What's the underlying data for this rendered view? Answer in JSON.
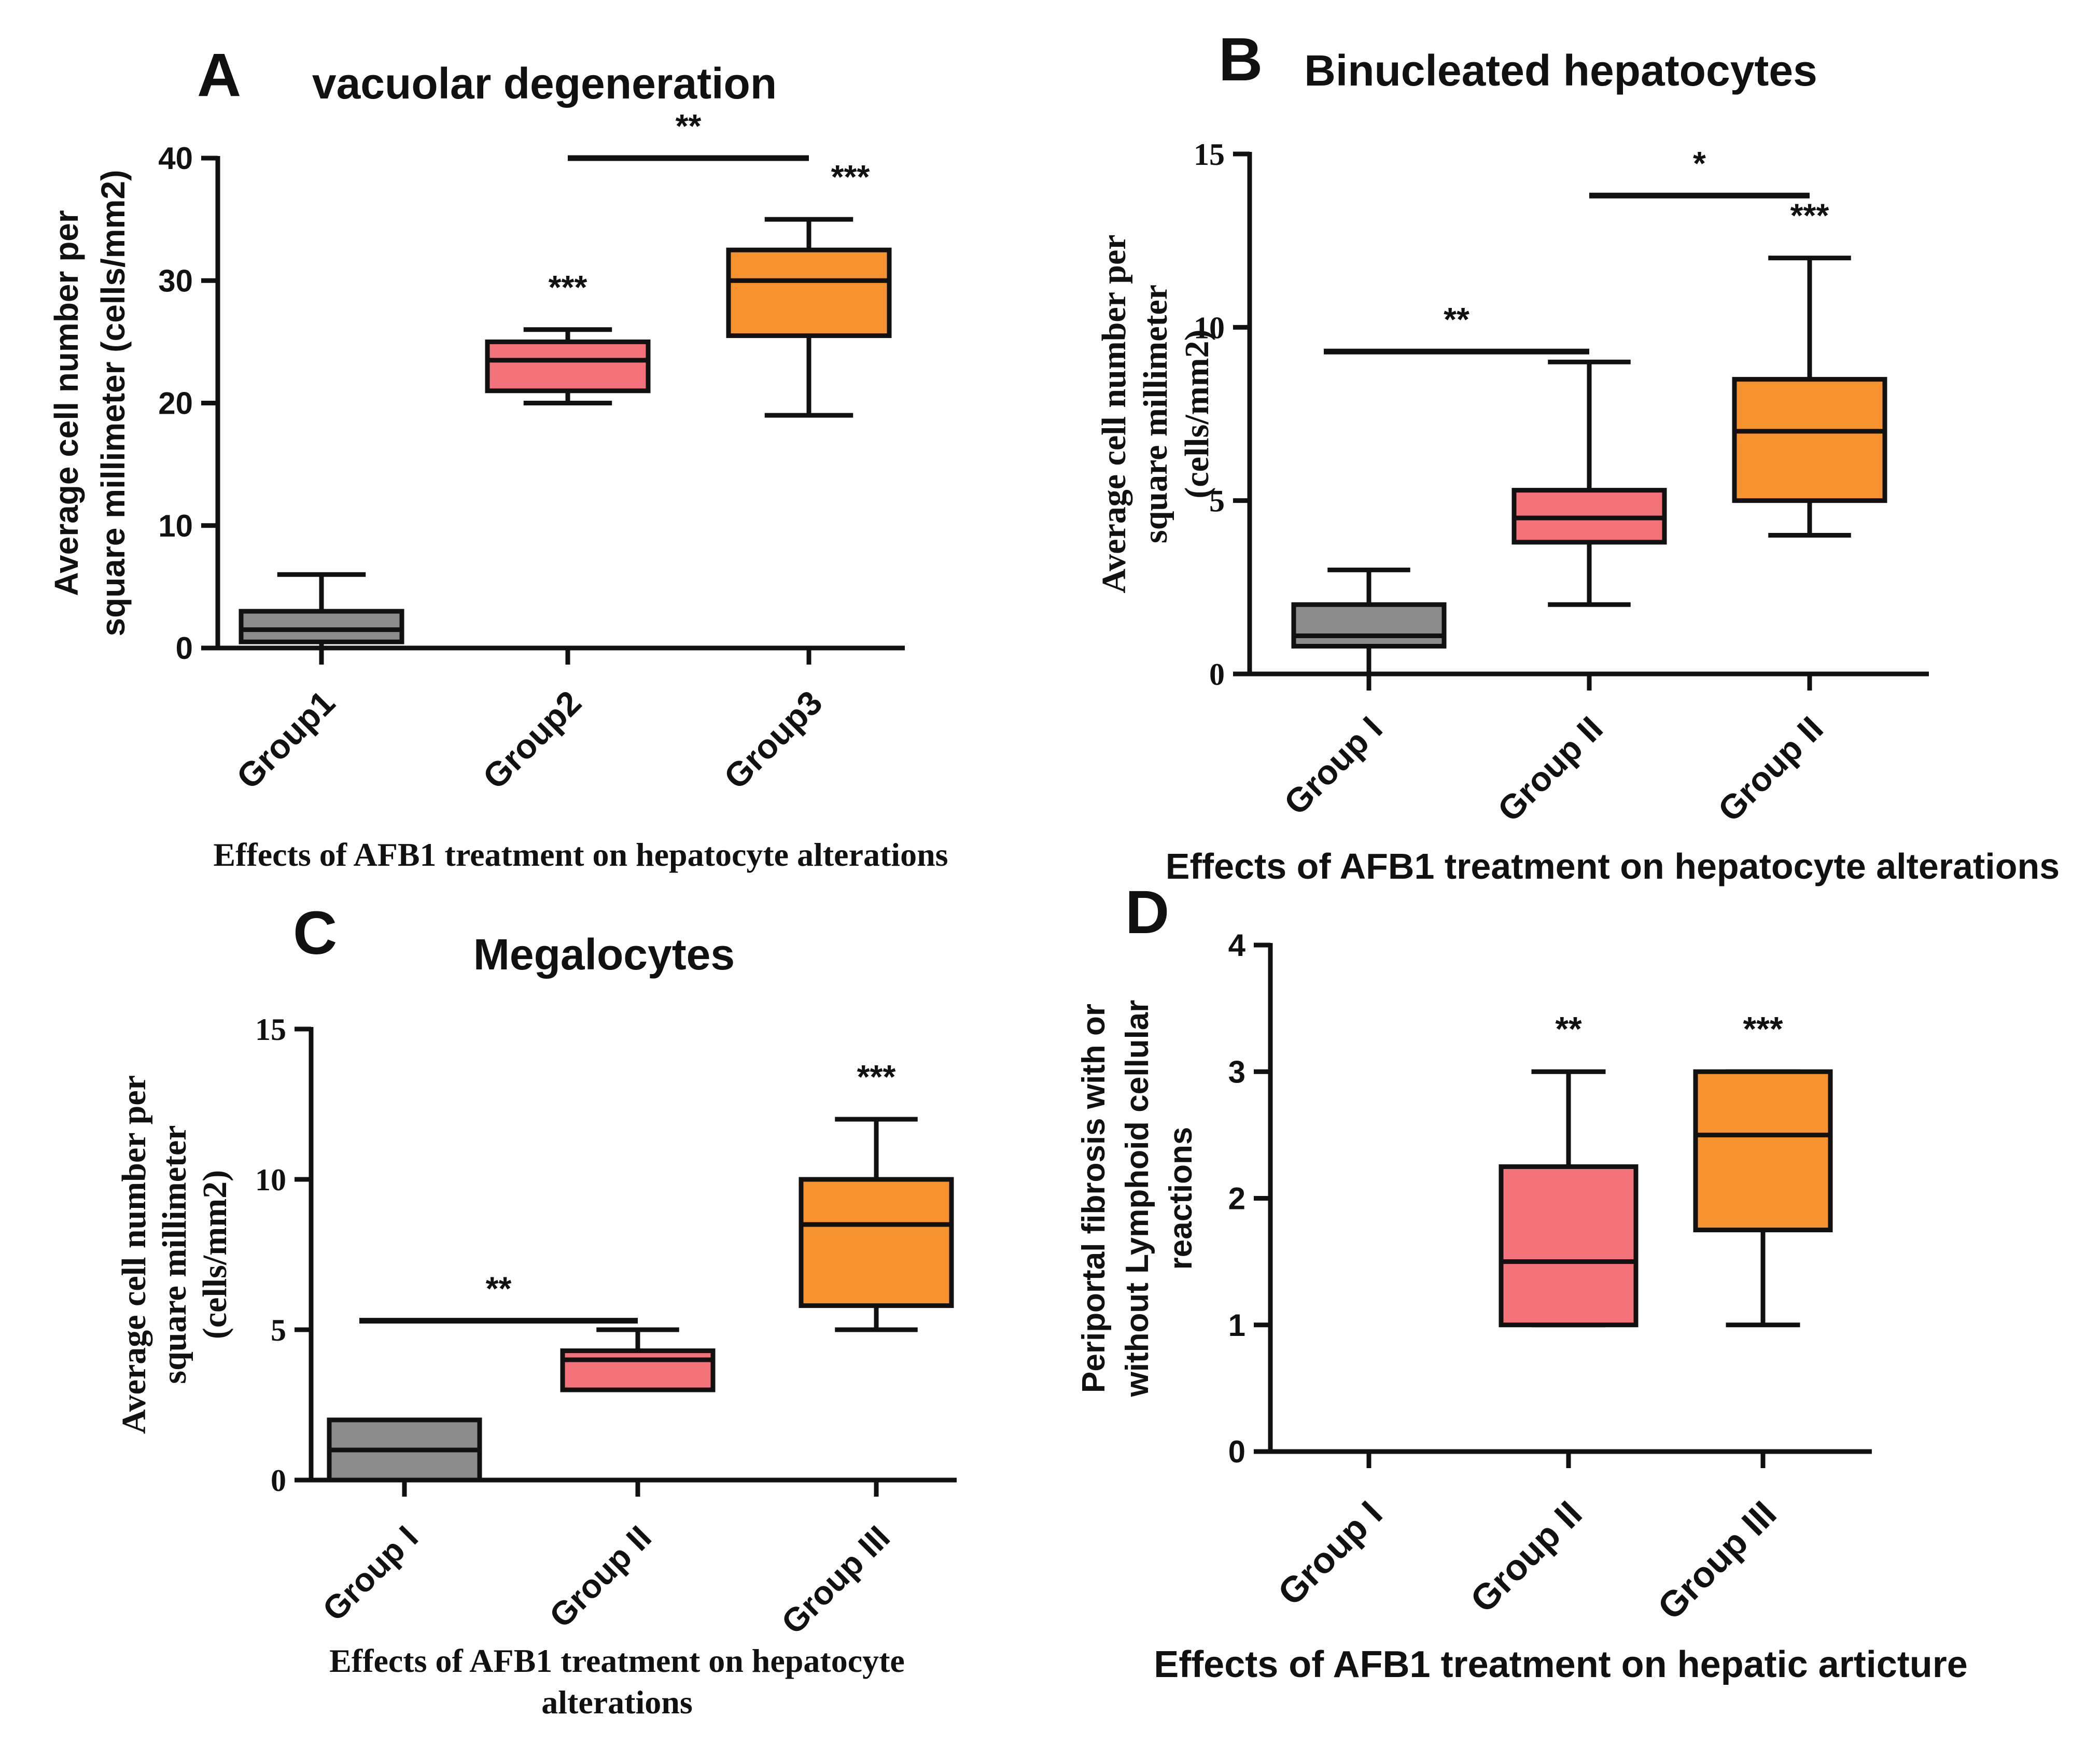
{
  "colors": {
    "group1": "#8c8c8c",
    "group2": "#f4737a",
    "group3": "#f7932f",
    "ink": "#111111",
    "background": "#ffffff"
  },
  "chart_data": [
    {
      "panel": "A",
      "type": "box",
      "title": "vacuolar degeneration",
      "ylabel": [
        "Average cell number per",
        "square millimeter (cells/mm2)"
      ],
      "xlabel": [
        "Effects of AFB1 treatment on hepatocyte alterations"
      ],
      "ylim": [
        0,
        40
      ],
      "yticks": [
        0,
        10,
        20,
        30,
        40
      ],
      "categories": [
        "Group1",
        "Group2",
        "Group3"
      ],
      "boxes": [
        {
          "whisker_low": 0,
          "q1": 0.5,
          "median": 1.5,
          "q3": 3,
          "whisker_high": 6
        },
        {
          "whisker_low": 20,
          "q1": 21,
          "median": 23.5,
          "q3": 25,
          "whisker_high": 26
        },
        {
          "whisker_low": 19,
          "q1": 25.5,
          "median": 30,
          "q3": 32.5,
          "whisker_high": 35
        }
      ],
      "stars": [
        "",
        "***",
        "***"
      ],
      "brackets": [
        {
          "from": 1,
          "to": 2,
          "y": 40,
          "label": "**"
        }
      ]
    },
    {
      "panel": "B",
      "type": "box",
      "title": "Binucleated hepatocytes",
      "ylabel": [
        "Average cell number per",
        "square millimeter",
        "(cells/mm2)"
      ],
      "xlabel": [
        "Effects of AFB1 treatment on hepatocyte alterations"
      ],
      "ylim": [
        0,
        15
      ],
      "yticks": [
        0,
        5,
        10,
        15
      ],
      "categories": [
        "Group I",
        "Group II",
        "Group II"
      ],
      "boxes": [
        {
          "whisker_low": 0,
          "q1": 0.8,
          "median": 1.1,
          "q3": 2,
          "whisker_high": 3
        },
        {
          "whisker_low": 2,
          "q1": 3.8,
          "median": 4.5,
          "q3": 5.3,
          "whisker_high": 9
        },
        {
          "whisker_low": 4,
          "q1": 5,
          "median": 7,
          "q3": 8.5,
          "whisker_high": 12
        }
      ],
      "stars": [
        "",
        "",
        "***"
      ],
      "brackets": [
        {
          "from": 0,
          "to": 1,
          "y": 9.3,
          "label": "**"
        },
        {
          "from": 1,
          "to": 2,
          "y": 13.8,
          "label": "*"
        }
      ]
    },
    {
      "panel": "C",
      "type": "box",
      "title": "Megalocytes",
      "ylabel": [
        "Average cell number per",
        "square millimeter",
        "(cells/mm2)"
      ],
      "xlabel": [
        "Effects of AFB1 treatment on hepatocyte",
        "alterations"
      ],
      "ylim": [
        0,
        15
      ],
      "yticks": [
        0,
        5,
        10,
        15
      ],
      "categories": [
        "Group I",
        "Group II",
        "Group III"
      ],
      "boxes": [
        {
          "whisker_low": 0,
          "q1": 0,
          "median": 1,
          "q3": 2,
          "whisker_high": 2
        },
        {
          "whisker_low": 3,
          "q1": 3,
          "median": 4,
          "q3": 4.3,
          "whisker_high": 5
        },
        {
          "whisker_low": 5,
          "q1": 5.8,
          "median": 8.5,
          "q3": 10,
          "whisker_high": 12
        }
      ],
      "stars": [
        "",
        "",
        "***"
      ],
      "brackets": [
        {
          "from": 0,
          "to": 1,
          "y": 5.3,
          "label": "**"
        }
      ]
    },
    {
      "panel": "D",
      "type": "box",
      "title": "",
      "ylabel": [
        "Periportal fibrosis with or",
        "without Lymphoid cellular",
        "reactions"
      ],
      "xlabel": [
        "Effects of AFB1 treatment on hepatic articture"
      ],
      "ylim": [
        0,
        4
      ],
      "yticks": [
        0,
        1,
        2,
        3,
        4
      ],
      "categories": [
        "Group I",
        "Group II",
        "Group III"
      ],
      "boxes": [
        null,
        {
          "whisker_low": 1,
          "q1": 1,
          "median": 1.5,
          "q3": 2.25,
          "whisker_high": 3
        },
        {
          "whisker_low": 1,
          "q1": 1.75,
          "median": 2.5,
          "q3": 3,
          "whisker_high": 3
        }
      ],
      "stars": [
        "",
        "**",
        "***"
      ],
      "brackets": []
    }
  ]
}
